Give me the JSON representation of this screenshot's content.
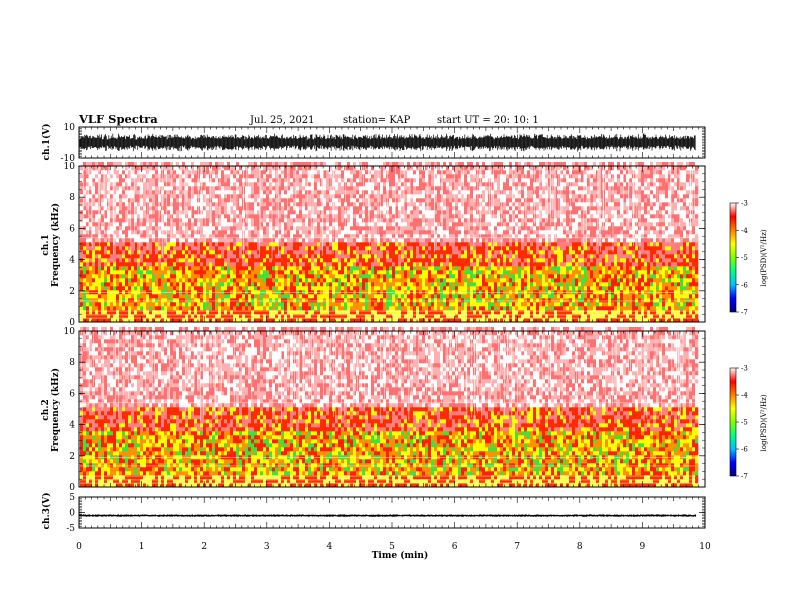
{
  "header": {
    "title": "VLF Spectra",
    "date": "Jul. 25, 2021",
    "station": "station= KAP",
    "start": "start UT =  20: 10: 1"
  },
  "chart_data": [
    {
      "type": "line",
      "panel": "ch1-waveform",
      "ylabel": "ch.1(V)",
      "ylim": [
        -10,
        10
      ],
      "ytick_labels": [
        "-10",
        "10"
      ],
      "xlim": [
        0,
        9.85
      ],
      "description_values": "dense noisy waveform, envelope approx -6 to 6 V"
    },
    {
      "type": "heatmap",
      "panel": "ch1-spectrogram",
      "ylabel": [
        "ch.1",
        "Frequency (kHz)"
      ],
      "ylim": [
        0,
        10
      ],
      "ytick_labels": [
        "0",
        "2",
        "4",
        "6",
        "8",
        "10"
      ],
      "xlim": [
        0,
        9.85
      ],
      "colorbar": {
        "label": "log(PSD)(V²/Hz)",
        "range": [
          -7,
          -3
        ],
        "tick_labels": [
          "-3",
          "-4",
          "-5",
          "-6",
          "-7"
        ],
        "colors": [
          "#000080",
          "#0000ff",
          "#00c0ff",
          "#00ff80",
          "#80ff00",
          "#ffff00",
          "#ff8000",
          "#ff0000",
          "#ffffff"
        ]
      },
      "bands": [
        {
          "fmin": 0.0,
          "fmax": 1.0,
          "level": "yellow-red"
        },
        {
          "fmin": 1.0,
          "fmax": 3.5,
          "level": "green-yellow"
        },
        {
          "fmin": 3.5,
          "fmax": 5.0,
          "level": "red"
        },
        {
          "fmin": 5.0,
          "fmax": 10.0,
          "level": "light-red"
        }
      ]
    },
    {
      "type": "heatmap",
      "panel": "ch2-spectrogram",
      "ylabel": [
        "ch.2",
        "Frequency (kHz)"
      ],
      "ylim": [
        0,
        10
      ],
      "ytick_labels": [
        "0",
        "2",
        "4",
        "6",
        "8",
        "10"
      ],
      "xlim": [
        0,
        9.85
      ],
      "colorbar": {
        "label": "log(PSD)(V²/Hz)",
        "range": [
          -7,
          -3
        ],
        "tick_labels": [
          "-3",
          "-4",
          "-5",
          "-6",
          "-7"
        ]
      }
    },
    {
      "type": "line",
      "panel": "ch3-waveform",
      "ylabel": "ch.3(V)",
      "ylim": [
        -5,
        5
      ],
      "ytick_labels": [
        "-5",
        "0",
        "5"
      ],
      "xlim": [
        0,
        9.85
      ],
      "description_values": "near-constant band around -1 V"
    }
  ],
  "xaxis": {
    "label": "Time (min)",
    "range": [
      0,
      10
    ],
    "tick_labels": [
      "0",
      "1",
      "2",
      "3",
      "4",
      "5",
      "6",
      "7",
      "8",
      "9",
      "10"
    ]
  }
}
